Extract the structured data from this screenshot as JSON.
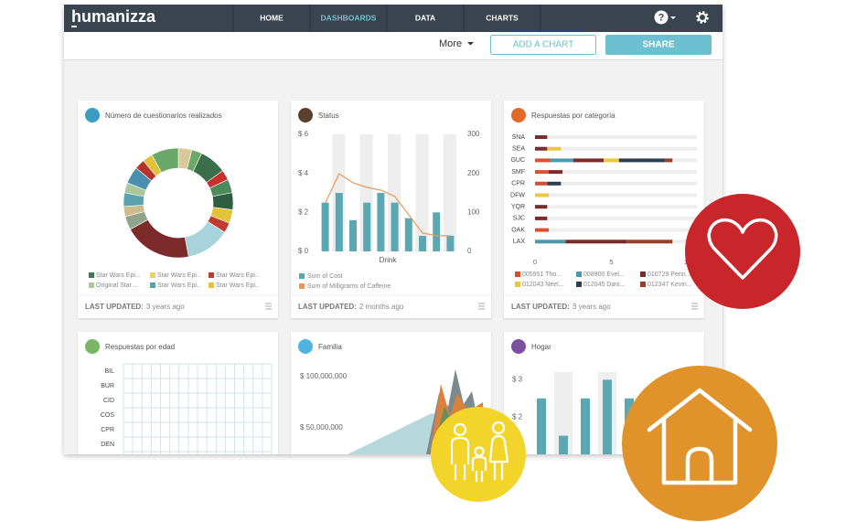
{
  "nav": {
    "logo": "humanizza",
    "items": [
      "HOME",
      "DASHBOARDS",
      "DATA",
      "CHARTS"
    ],
    "help": "?"
  },
  "toolbar": {
    "more": "More",
    "add_chart": "ADD A CHART",
    "share": "SHARE"
  },
  "cards": [
    {
      "title": "Número de cuestionarios realizados",
      "footer": {
        "label": "LAST UPDATED:",
        "value": "3 years ago"
      },
      "chart": {
        "type": "pie",
        "values": [
          4,
          3,
          8,
          3,
          4,
          5,
          4,
          3,
          13,
          20,
          4,
          3,
          4,
          3,
          5,
          3,
          3,
          8
        ],
        "colors": [
          "#d9c89a",
          "#6aa86a",
          "#3b6e4a",
          "#c7302d",
          "#4f8a5c",
          "#2f5f43",
          "#e3c33a",
          "#c23a30",
          "#a8d3dd",
          "#7c2a2a",
          "#8fa58a",
          "#cdbb8c",
          "#5aa3ad",
          "#a9c79a",
          "#4a8fb0",
          "#b8332c",
          "#e0c23b",
          "#6aa86a"
        ],
        "legend": [
          {
            "name": "Star Wars Epi...",
            "color": "#3d7a4e"
          },
          {
            "name": "Star Wars Epi...",
            "color": "#e8d36a"
          },
          {
            "name": "Star Wars Epi...",
            "color": "#c23a30"
          },
          {
            "name": "Original Star ...",
            "color": "#a9c79a"
          },
          {
            "name": "Star Wars Epi...",
            "color": "#5aa3ad"
          },
          {
            "name": "Star Wars Epi...",
            "color": "#e3c33a"
          }
        ]
      }
    },
    {
      "title": "Status",
      "footer": {
        "label": "LAST UPDATED:",
        "value": "2 months ago"
      },
      "chart": {
        "type": "bar",
        "categories": [
          null,
          null,
          null,
          null,
          null,
          null,
          null,
          null,
          null,
          null
        ],
        "x_label": "Drink",
        "series": [
          {
            "name": "Sum of Cost",
            "color": "#5ba8b3",
            "values": [
              2.5,
              3,
              1.6,
              2.5,
              3,
              2.5,
              1.7,
              0.8,
              2,
              0.8
            ]
          },
          {
            "name": "Sum of Milligrams of Caffeine",
            "color": "#e8995a",
            "axis": "y2",
            "values": [
              124,
              199,
              176,
              164,
              157,
              141,
              94,
              47,
              40,
              40
            ]
          }
        ],
        "ylim": [
          0,
          6
        ],
        "yticks": [
          {
            "value": 6,
            "label": "$ 6"
          },
          {
            "value": 4,
            "label": "$ 4"
          },
          {
            "value": 2,
            "label": "$ 2"
          },
          {
            "value": 0,
            "label": "$ 0"
          }
        ],
        "y2lim": [
          0,
          300
        ],
        "y2ticks": [
          300,
          200,
          100,
          0
        ]
      }
    },
    {
      "title": "Respuestas por categoría",
      "footer": {
        "label": "LAST UPDATED:",
        "value": "3 years ago"
      },
      "chart": {
        "type": "hbar",
        "categories": [
          "SNA",
          "SEA",
          "GUC",
          "SMF",
          "CPR",
          "DFW",
          "YQR",
          "SJC",
          "OAK",
          "LAX"
        ],
        "series": [
          {
            "name": "005951 Tho...",
            "color": "#d9502f",
            "values": [
              0,
              0,
              1,
              0.9,
              0.8,
              0,
              0,
              0,
              0.9,
              0
            ]
          },
          {
            "name": "008900 Evel...",
            "color": "#4a9aaa",
            "values": [
              0,
              0,
              1.5,
              0,
              0,
              0,
              0,
              0,
              0,
              2
            ]
          },
          {
            "name": "010729 Penn...",
            "color": "#7a2b2b",
            "values": [
              0.8,
              0.8,
              2,
              0.9,
              0,
              0,
              0.8,
              0.8,
              0,
              4
            ]
          },
          {
            "name": "012043 Neel...",
            "color": "#e8c840",
            "values": [
              0,
              0.9,
              1,
              0,
              0,
              0.9,
              0,
              0,
              0,
              0
            ]
          },
          {
            "name": "012045 Dani...",
            "color": "#2c3e50",
            "values": [
              0,
              0,
              3,
              0,
              0.9,
              0,
              0,
              0,
              0,
              0
            ]
          },
          {
            "name": "012347 Kevin...",
            "color": "#9a3d2a",
            "values": [
              0,
              0,
              0.5,
              0,
              0,
              0,
              0,
              0,
              0,
              3
            ]
          }
        ],
        "xlim": [
          0,
          10.6
        ],
        "xticks": [
          0,
          5,
          10
        ]
      }
    },
    {
      "title": "Respuestas por edad",
      "chart": {
        "type": "heatmap",
        "categories": [
          "BIL",
          "BUR",
          "CID",
          "COS",
          "CPR",
          "DEN"
        ]
      }
    },
    {
      "title": "Familia",
      "chart": {
        "type": "area",
        "ylim": [
          24000000,
          112500000
        ],
        "yticks": [
          {
            "value": 100000000,
            "label": "$ 100,000,000"
          },
          {
            "value": 50000000,
            "label": "$ 50,000,000"
          }
        ]
      }
    },
    {
      "title": "Hogar",
      "chart": {
        "type": "bar",
        "values": [
          2.5,
          1.5,
          2.5,
          3,
          2.5
        ],
        "color": "#5ba8b3",
        "ylim": [
          1,
          3.5
        ],
        "yticks": [
          {
            "value": 3,
            "label": "$ 3"
          },
          {
            "value": 2,
            "label": "$ 2"
          }
        ]
      }
    }
  ]
}
